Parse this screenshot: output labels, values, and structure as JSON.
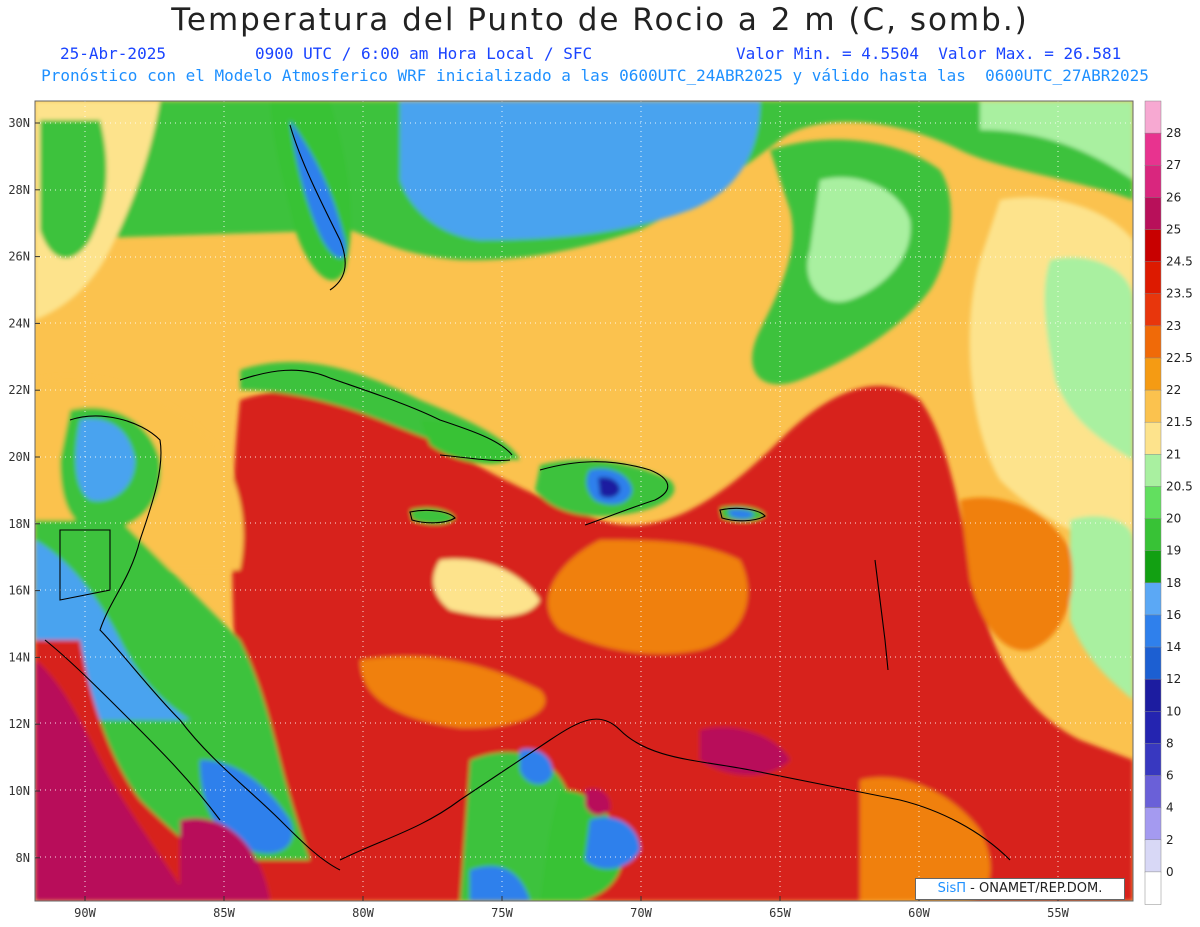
{
  "header": {
    "title": "Temperatura del Punto de Rocio a 2 m (C, somb.)",
    "date": "25-Abr-2025",
    "time": "0900 UTC / 6:00 am Hora Local / SFC",
    "minmax": "Valor Min. = 4.5504  Valor Max. = 26.581",
    "forecast": "Pronóstico con el Modelo Atmosferico WRF inicializado a las 0600UTC_24ABR2025 y válido hasta las  0600UTC_27ABR2025"
  },
  "axes": {
    "lat_labels": [
      "30N",
      "28N",
      "26N",
      "24N",
      "22N",
      "20N",
      "18N",
      "16N",
      "14N",
      "12N",
      "10N",
      "8N"
    ],
    "lon_labels": [
      "90W",
      "85W",
      "80W",
      "75W",
      "70W",
      "65W",
      "60W",
      "55W"
    ]
  },
  "legend": {
    "labels": [
      "28",
      "27",
      "26",
      "25",
      "24.5",
      "23.5",
      "23",
      "22.5",
      "22",
      "21.5",
      "21",
      "20.5",
      "20",
      "19",
      "18",
      "16",
      "14",
      "12",
      "10",
      "8",
      "6",
      "4",
      "2",
      "0"
    ],
    "colors": [
      "#f7a9d2",
      "#e8338f",
      "#d9267e",
      "#b8105a",
      "#c80000",
      "#dd1a00",
      "#e8360c",
      "#f06a08",
      "#f59b13",
      "#fbc24e",
      "#fde38c",
      "#a9f0a0",
      "#62df5f",
      "#38c236",
      "#12a012",
      "#5ba8f5",
      "#2f80ec",
      "#1c5fd2",
      "#1c1ca0",
      "#2424b0",
      "#3838c0",
      "#6a60d8",
      "#a49af0",
      "#d8d8f6",
      "#ffffff"
    ]
  },
  "colors": {
    "ocean_red": "#d7241b",
    "gulf_blue": "#4aa3ef",
    "land_green": "#3cc23c",
    "magenta": "#b8105a",
    "orange": "#f08010",
    "yellow": "#fde38c",
    "title_blue": "#1a44ff",
    "subtitle_blue": "#1e90ff"
  },
  "credit": {
    "logo": "SisΠ",
    "text": " - ONAMET/REP.DOM."
  }
}
